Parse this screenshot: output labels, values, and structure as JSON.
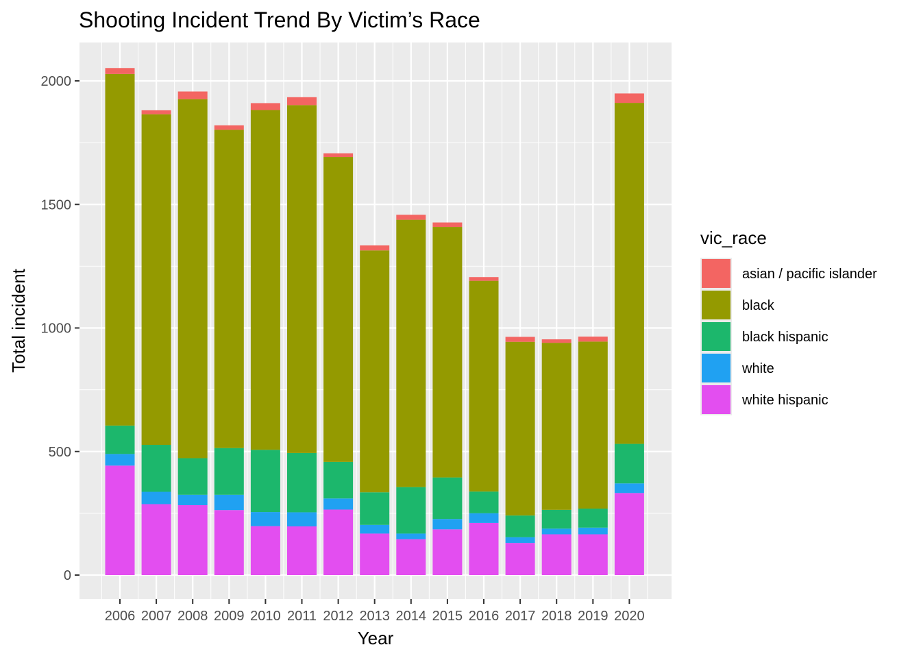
{
  "chart_data": {
    "type": "bar",
    "stacked": true,
    "title": "Shooting Incident Trend By Victim’s Race",
    "xlabel": "Year",
    "ylabel": "Total incident",
    "ylim": [
      -95,
      2150
    ],
    "yticks": [
      0,
      500,
      1000,
      1500,
      2000
    ],
    "grid": true,
    "legend_position": "right",
    "legend_title": "vic_race",
    "categories": [
      "2006",
      "2007",
      "2008",
      "2009",
      "2010",
      "2011",
      "2012",
      "2013",
      "2014",
      "2015",
      "2016",
      "2017",
      "2018",
      "2019",
      "2020"
    ],
    "series": [
      {
        "name": "white hispanic",
        "color": "#E34EF0",
        "values": [
          443,
          287,
          283,
          263,
          198,
          197,
          265,
          168,
          145,
          185,
          211,
          130,
          165,
          165,
          332
        ]
      },
      {
        "name": "white",
        "color": "#20A1F2",
        "values": [
          47,
          50,
          42,
          62,
          57,
          57,
          45,
          35,
          23,
          42,
          39,
          23,
          23,
          27,
          39
        ]
      },
      {
        "name": "black hispanic",
        "color": "#1CB76C",
        "values": [
          115,
          190,
          148,
          189,
          252,
          240,
          148,
          132,
          188,
          168,
          88,
          88,
          76,
          77,
          160
        ]
      },
      {
        "name": "black",
        "color": "#949A00",
        "values": [
          1423,
          1338,
          1453,
          1288,
          1375,
          1408,
          1234,
          979,
          1082,
          1014,
          853,
          703,
          676,
          676,
          1380
        ]
      },
      {
        "name": "asian / pacific islander",
        "color": "#F36562",
        "values": [
          24,
          16,
          31,
          18,
          28,
          32,
          15,
          20,
          20,
          18,
          15,
          20,
          14,
          20,
          38
        ]
      }
    ],
    "legend_order": [
      "asian / pacific islander",
      "black",
      "black hispanic",
      "white",
      "white hispanic"
    ]
  }
}
